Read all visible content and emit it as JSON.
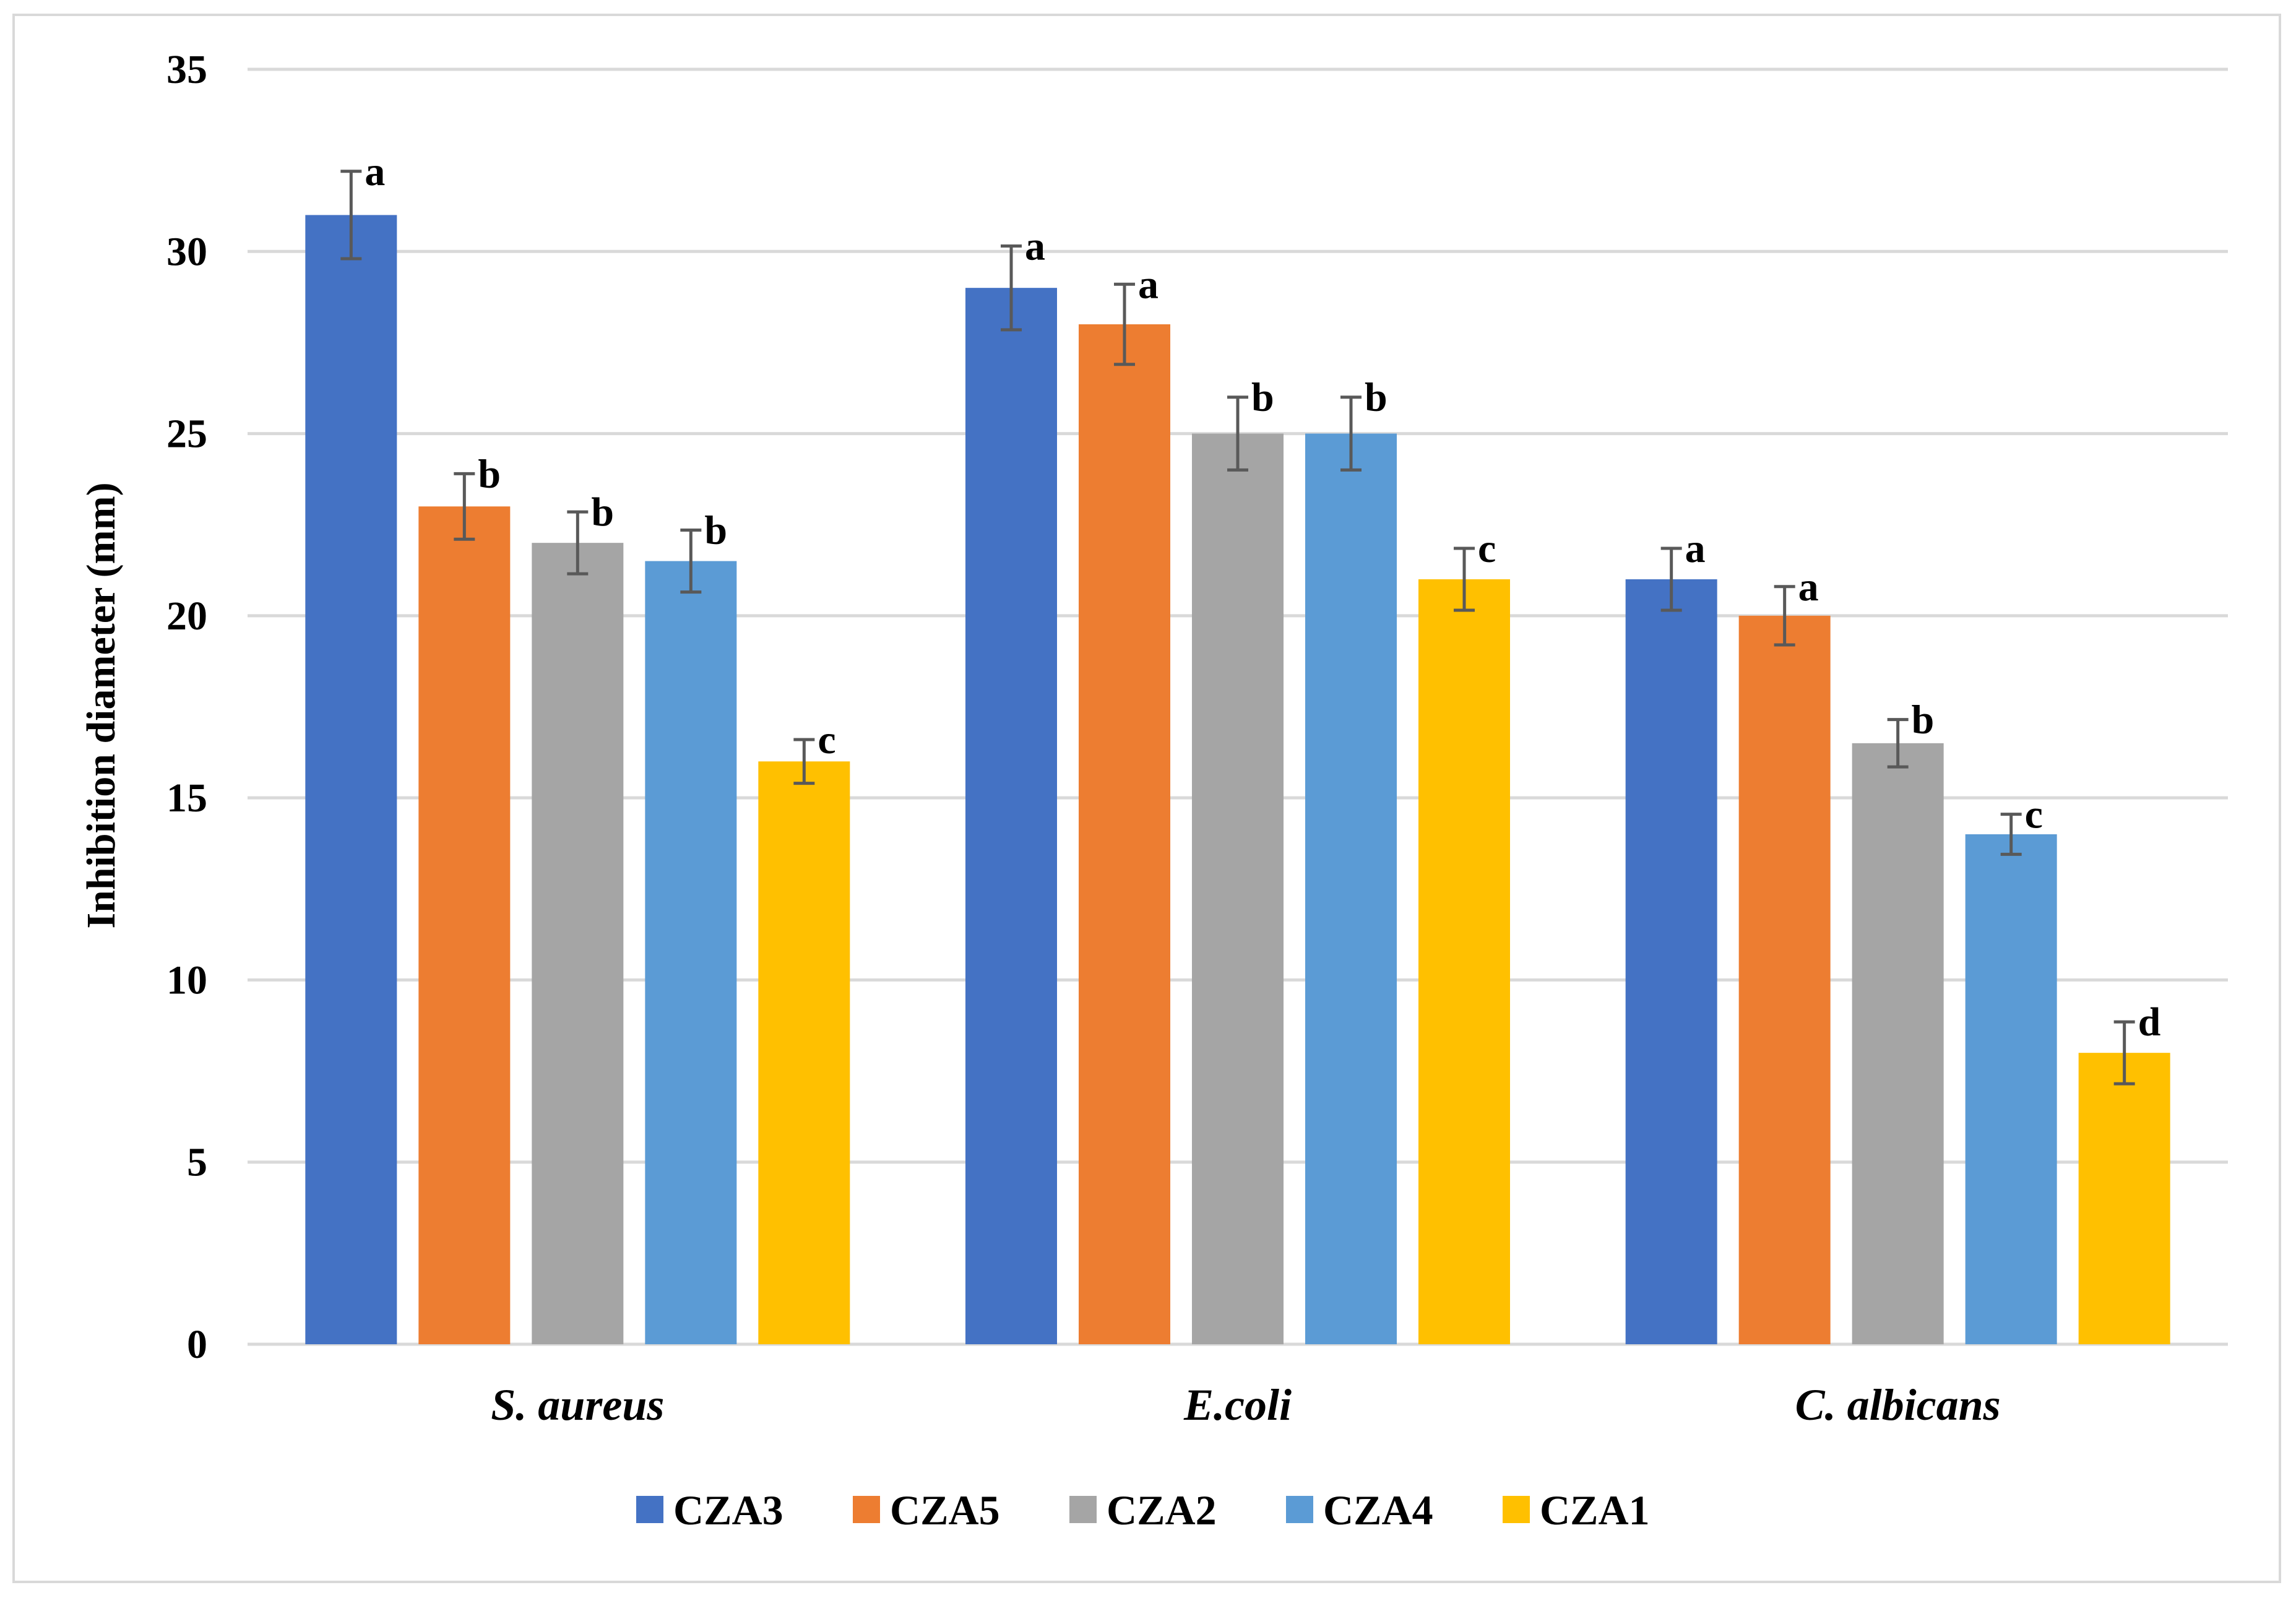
{
  "chart_data": {
    "type": "bar",
    "title": "",
    "xlabel": "",
    "ylabel": "Inhibition diameter (mm)",
    "ylim": [
      0,
      35
    ],
    "yticks": [
      0,
      5,
      10,
      15,
      20,
      25,
      30,
      35
    ],
    "grid": true,
    "legend_position": "bottom",
    "categories": [
      "S. aureus",
      "E.coli",
      "C. albicans"
    ],
    "series": [
      {
        "name": "CZA3",
        "color": "#4472C4",
        "values": [
          31,
          29,
          21
        ],
        "errors": [
          1.2,
          1.15,
          0.85
        ],
        "letters": [
          "a",
          "a",
          "a"
        ]
      },
      {
        "name": "CZA5",
        "color": "#ED7D31",
        "values": [
          23,
          28,
          20
        ],
        "errors": [
          0.9,
          1.1,
          0.8
        ],
        "letters": [
          "b",
          "a",
          "a"
        ]
      },
      {
        "name": "CZA2",
        "color": "#A5A5A5",
        "values": [
          22,
          25,
          16.5
        ],
        "errors": [
          0.85,
          1.0,
          0.65
        ],
        "letters": [
          "b",
          "b",
          "b"
        ]
      },
      {
        "name": "CZA4",
        "color": "#5B9BD5",
        "values": [
          21.5,
          25,
          14
        ],
        "errors": [
          0.85,
          1.0,
          0.55
        ],
        "letters": [
          "b",
          "b",
          "c"
        ]
      },
      {
        "name": "CZA1",
        "color": "#FFC000",
        "values": [
          16,
          21,
          8
        ],
        "errors": [
          0.6,
          0.85,
          0.85
        ],
        "letters": [
          "c",
          "c",
          "d"
        ]
      }
    ]
  }
}
